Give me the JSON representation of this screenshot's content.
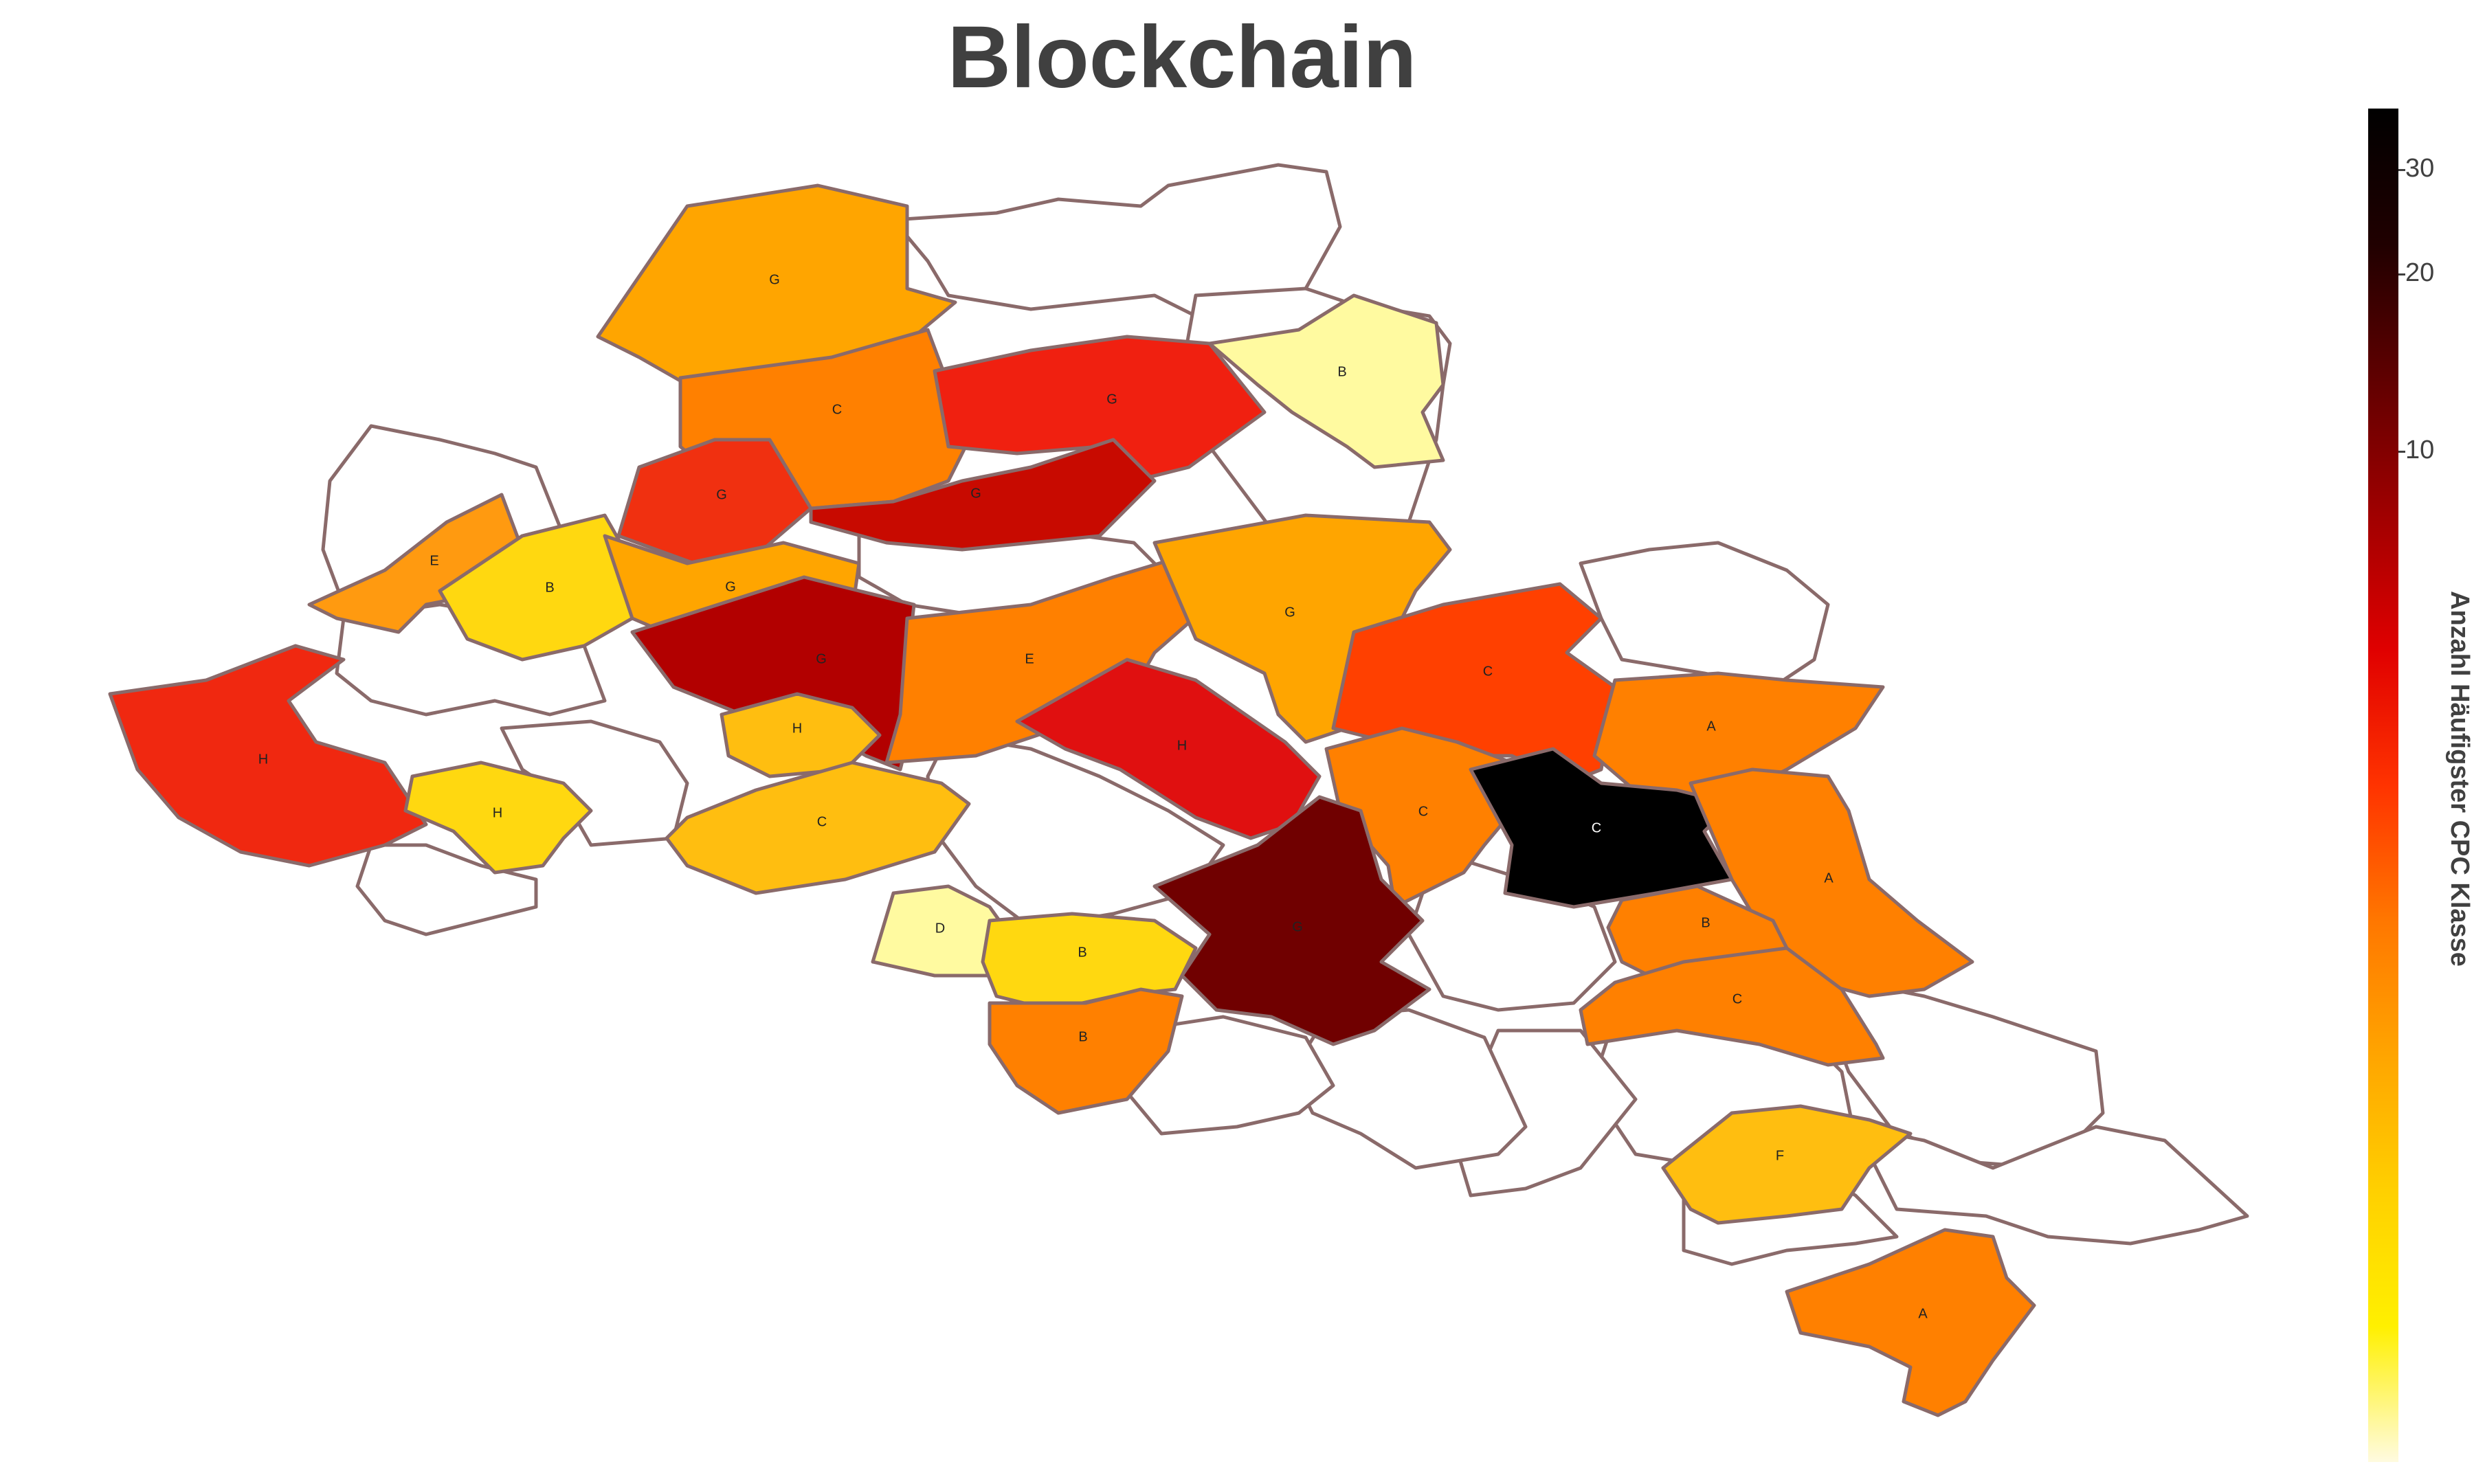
{
  "title": "Blockchain",
  "colorbar": {
    "label": "Anzahl Häufigster CPC Klasse",
    "ticks": [
      "30",
      "20",
      "10"
    ],
    "colors": [
      "#fffbe0",
      "#fff000",
      "#ffd000",
      "#ffa500",
      "#ff7700",
      "#ff3300",
      "#e00000",
      "#a00000",
      "#600000",
      "#200000",
      "#000000"
    ],
    "scale": "log"
  },
  "regions": [
    {
      "label": "G",
      "fill": "#ffa500"
    },
    {
      "label": "C",
      "fill": "#ff8000"
    },
    {
      "label": "G",
      "fill": "#f02010"
    },
    {
      "label": "B",
      "fill": "#fffaa0"
    },
    {
      "label": "G",
      "fill": "#f03010"
    },
    {
      "label": "G",
      "fill": "#c80a00"
    },
    {
      "label": "E",
      "fill": "#ff9a10"
    },
    {
      "label": "B",
      "fill": "#ffd810"
    },
    {
      "label": "G",
      "fill": "#ffa500"
    },
    {
      "label": "G",
      "fill": "#b20000"
    },
    {
      "label": "E",
      "fill": "#ff8000"
    },
    {
      "label": "G",
      "fill": "#ffa500"
    },
    {
      "label": "C",
      "fill": "#ff4000"
    },
    {
      "label": "H",
      "fill": "#f02810"
    },
    {
      "label": "H",
      "fill": "#ffbe10"
    },
    {
      "label": "H",
      "fill": "#e01010"
    },
    {
      "label": "A",
      "fill": "#ff8000"
    },
    {
      "label": "H",
      "fill": "#ffd810"
    },
    {
      "label": "C",
      "fill": "#ffbe10"
    },
    {
      "label": "C",
      "fill": "#ff8000"
    },
    {
      "label": "C",
      "fill": "#000000"
    },
    {
      "label": "A",
      "fill": "#ff8000"
    },
    {
      "label": "D",
      "fill": "#fffaa0"
    },
    {
      "label": "B",
      "fill": "#ffd810"
    },
    {
      "label": "G",
      "fill": "#700000"
    },
    {
      "label": "B",
      "fill": "#ff8000"
    },
    {
      "label": "B",
      "fill": "#ff8000"
    },
    {
      "label": "C",
      "fill": "#ff8000"
    },
    {
      "label": "F",
      "fill": "#ffbe10"
    },
    {
      "label": "A",
      "fill": "#ff8000"
    }
  ]
}
